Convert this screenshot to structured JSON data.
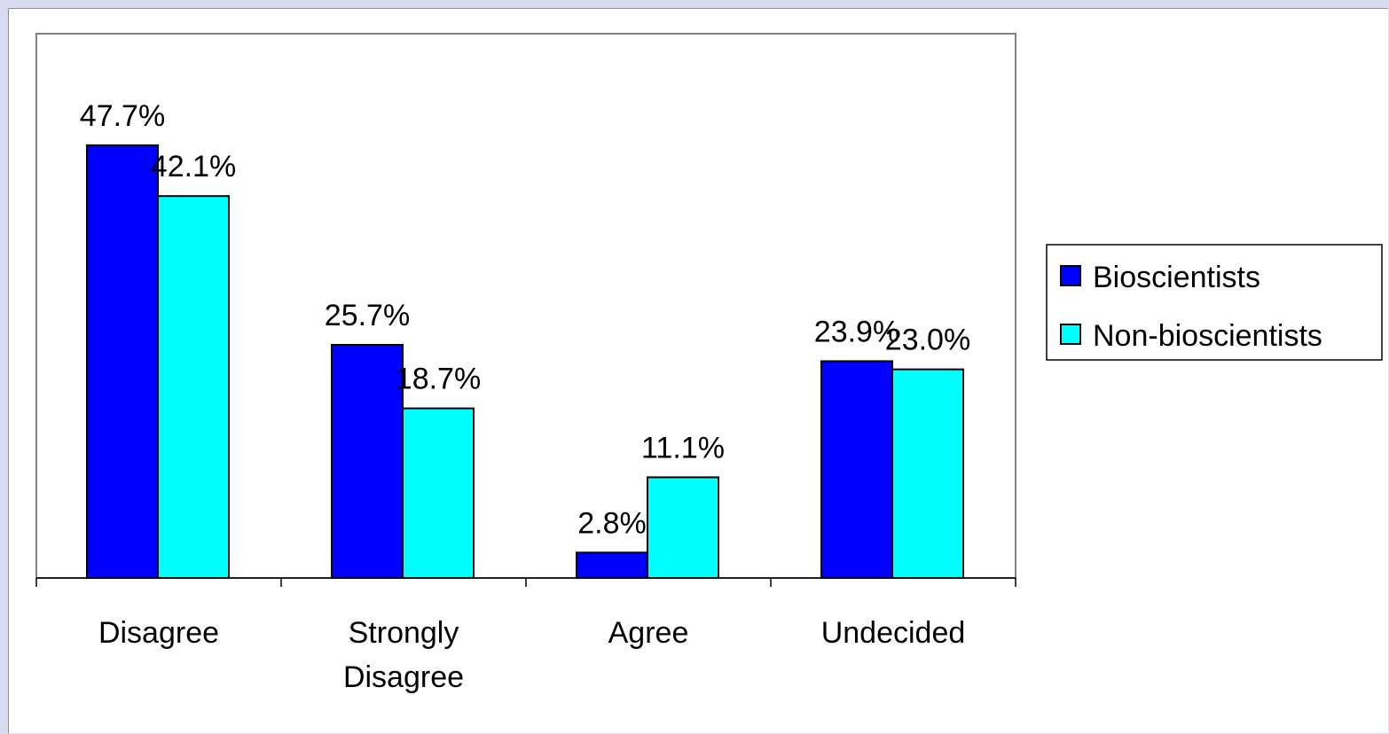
{
  "chart_data": {
    "type": "bar",
    "categories": [
      "Disagree",
      "Strongly Disagree",
      "Agree",
      "Undecided"
    ],
    "category_lines": [
      [
        "Disagree"
      ],
      [
        "Strongly",
        "Disagree"
      ],
      [
        "Agree"
      ],
      [
        "Undecided"
      ]
    ],
    "series": [
      {
        "name": "Bioscientists",
        "values": [
          47.7,
          25.7,
          2.8,
          23.9
        ],
        "labels": [
          "47.7%",
          "25.7%",
          "2.8%",
          "23.9%"
        ],
        "color": "#0000ff"
      },
      {
        "name": "Non-bioscientists",
        "values": [
          42.1,
          18.7,
          11.1,
          23.0
        ],
        "labels": [
          "42.1%",
          "18.7%",
          "11.1%",
          "23.0%"
        ],
        "color": "#00ffff"
      }
    ],
    "ylim": [
      0,
      60
    ],
    "grid": false,
    "legend_position": "right",
    "colors": {
      "page_background": "#d9dcf0",
      "plot_border": "#808080",
      "bar_outline": "#000000"
    }
  }
}
